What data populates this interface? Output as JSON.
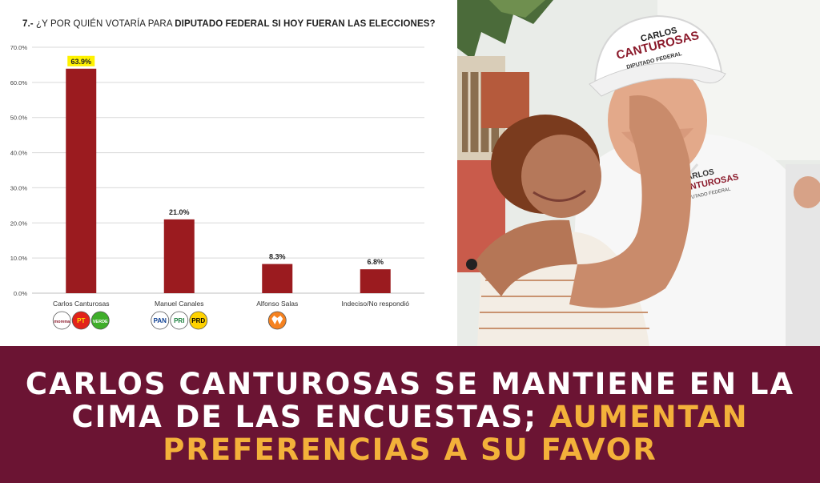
{
  "chart_data": {
    "type": "bar",
    "title_prefix": "7.-",
    "title_normal": "¿Y POR QUIÉN VOTARÍA PARA",
    "title_bold": "DIPUTADO FEDERAL SI HOY FUERAN LAS ELECCIONES?",
    "categories": [
      "Carlos Canturosas",
      "Manuel Canales",
      "Alfonso Salas",
      "Indeciso/No respondió"
    ],
    "values": [
      63.9,
      21.0,
      8.3,
      6.8
    ],
    "value_labels": [
      "63.9%",
      "21.0%",
      "8.3%",
      "6.8%"
    ],
    "ylim": [
      0,
      70
    ],
    "yticks": [
      "0.0%",
      "10.0%",
      "20.0%",
      "30.0%",
      "40.0%",
      "50.0%",
      "60.0%",
      "70.0%"
    ],
    "grid": true,
    "bar_color": "#9b1b1f",
    "highlight_color": "#fff200",
    "party_logos": [
      [
        {
          "icon": "morena-logo",
          "text": "morena",
          "color": "#ffffff",
          "fg": "#8b1a2b"
        },
        {
          "icon": "pt-logo",
          "text": "PT",
          "color": "#e2231a",
          "fg": "#ffde00"
        },
        {
          "icon": "pvem-logo",
          "text": "VERDE",
          "color": "#3fae2a",
          "fg": "#ffffff"
        }
      ],
      [
        {
          "icon": "pan-logo",
          "text": "PAN",
          "color": "#ffffff",
          "fg": "#0b3d91"
        },
        {
          "icon": "pri-logo",
          "text": "PRI",
          "color": "#ffffff",
          "fg": "#1a7f3c"
        },
        {
          "icon": "prd-logo",
          "text": "PRD",
          "color": "#ffd200",
          "fg": "#000000"
        }
      ],
      [
        {
          "icon": "mc-logo",
          "text": "",
          "color": "#f58220",
          "fg": "#ffffff"
        }
      ],
      []
    ]
  },
  "photo": {
    "cap_line1": "CARLOS",
    "cap_line2": "CANTUROSAS",
    "cap_line3": "DIPUTADO FEDERAL",
    "shirt_line1": "CARLOS",
    "shirt_line2": "CANTUROSAS",
    "shirt_line3": "DIPUTADO FEDERAL"
  },
  "banner": {
    "headline_white": "CARLOS CANTUROSAS SE MANTIENE EN LA CIMA DE LAS ENCUESTAS;",
    "headline_gold": "AUMENTAN PREFERENCIAS A SU FAVOR",
    "bg_color": "#6b1433",
    "gold_color": "#f3b13a"
  }
}
